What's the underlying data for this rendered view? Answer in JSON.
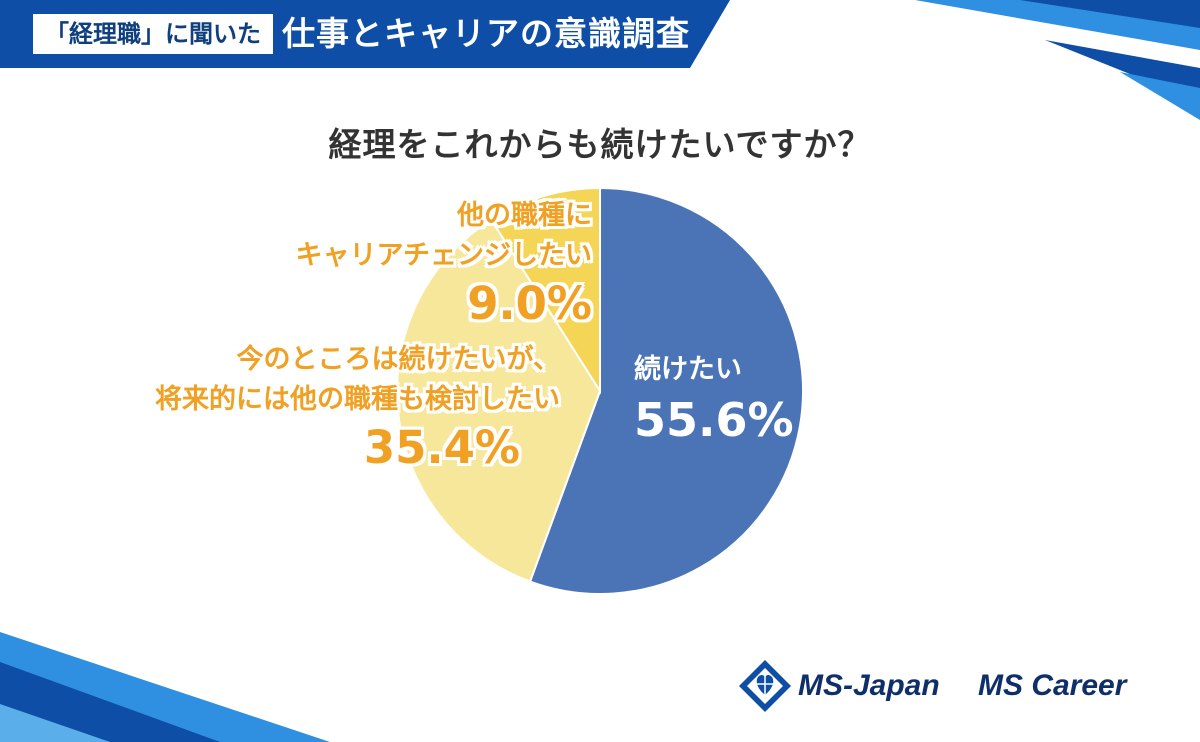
{
  "header": {
    "tag": "「経理職」に聞いた",
    "title": "仕事とキャリアの意識調査"
  },
  "colors": {
    "header_blue": "#0f4ea6",
    "accent_light_blue": "#2f8fe0",
    "slice_blue": "#4a74b6",
    "slice_light_yellow": "#f7e79b",
    "slice_yellow": "#f5d555",
    "label_orange": "#f0a124",
    "logo_navy": "#0f2f6b"
  },
  "chart_data": {
    "type": "pie",
    "title": "経理をこれからも続けたいですか？",
    "slices": [
      {
        "label_lines": [
          "続けたい"
        ],
        "value": 55.6,
        "display": "55.6%",
        "color": "#4a74b6"
      },
      {
        "label_lines": [
          "今のところは続けたいが、",
          "将来的には他の職種も検討したい"
        ],
        "value": 35.4,
        "display": "35.4%",
        "color": "#f7e79b"
      },
      {
        "label_lines": [
          "他の職種に",
          "キャリアチェンジしたい"
        ],
        "value": 9.0,
        "display": "9.0%",
        "color": "#f5d555"
      }
    ],
    "start": "12 o'clock",
    "direction": "clockwise"
  },
  "logos": {
    "ms_japan": "MS-Japan",
    "ms_career": "MS Career"
  },
  "icons": {
    "ms_japan_mark": "diamond-heart-icon"
  }
}
